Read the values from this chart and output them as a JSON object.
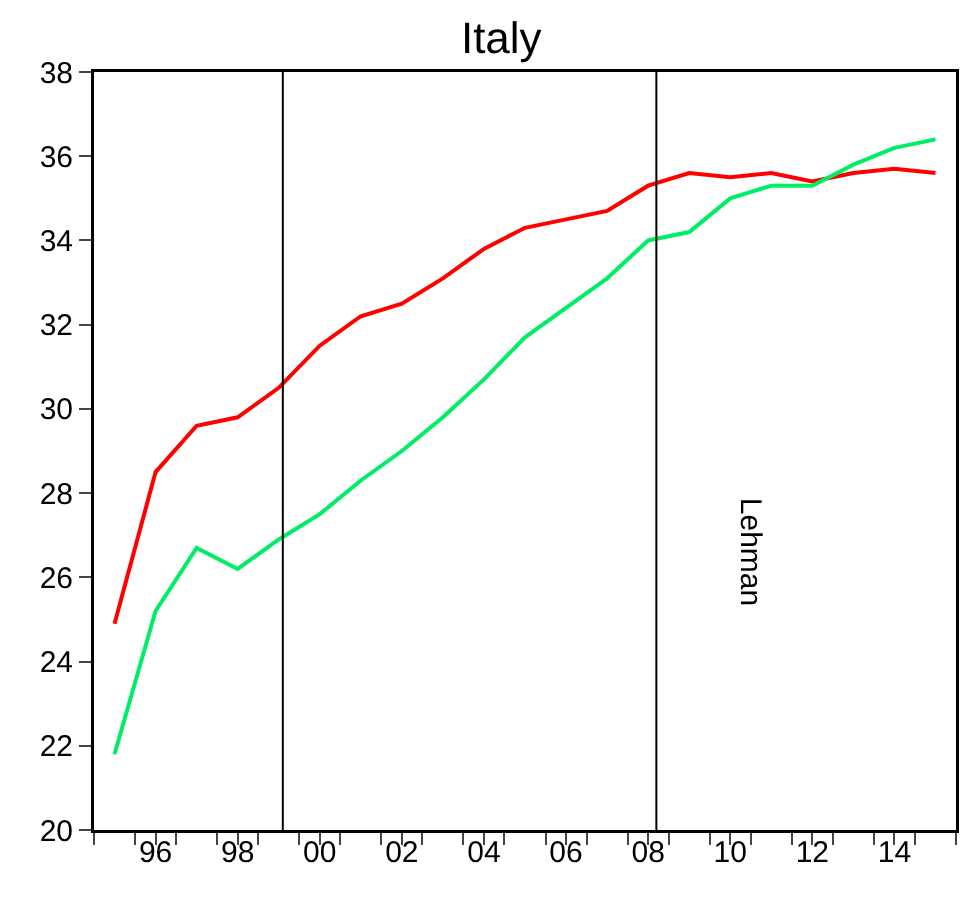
{
  "chart_data": {
    "type": "line",
    "title": "Italy",
    "x": [
      1995,
      1996,
      1997,
      1998,
      1999,
      2000,
      2001,
      2002,
      2003,
      2004,
      2005,
      2006,
      2007,
      2008,
      2009,
      2010,
      2011,
      2012,
      2013,
      2014,
      2015
    ],
    "series": [
      {
        "color": "#ff0000",
        "values": [
          24.9,
          28.5,
          29.6,
          29.8,
          30.5,
          31.5,
          32.2,
          32.5,
          33.1,
          33.8,
          34.3,
          34.5,
          34.7,
          35.3,
          35.6,
          35.5,
          35.6,
          35.4,
          35.6,
          35.7,
          35.6
        ]
      },
      {
        "color": "#00ee66",
        "values": [
          21.8,
          25.2,
          26.7,
          26.2,
          26.9,
          27.5,
          28.3,
          29.0,
          29.8,
          30.7,
          31.7,
          32.4,
          33.1,
          34.0,
          34.2,
          35.0,
          35.3,
          35.3,
          35.8,
          36.2,
          36.4
        ]
      }
    ],
    "xlim": [
      1994.5,
      2015.5
    ],
    "xticks": [
      {
        "value": 1994.5,
        "label": null
      },
      {
        "value": 1995.5,
        "label": null
      },
      {
        "value": 1996,
        "label": "96"
      },
      {
        "value": 1996.5,
        "label": null
      },
      {
        "value": 1997.5,
        "label": null
      },
      {
        "value": 1998,
        "label": "98"
      },
      {
        "value": 1998.5,
        "label": null
      },
      {
        "value": 1999.5,
        "label": null
      },
      {
        "value": 2000,
        "label": "00"
      },
      {
        "value": 2000.5,
        "label": null
      },
      {
        "value": 2001.5,
        "label": null
      },
      {
        "value": 2002,
        "label": "02"
      },
      {
        "value": 2002.5,
        "label": null
      },
      {
        "value": 2003.5,
        "label": null
      },
      {
        "value": 2004,
        "label": "04"
      },
      {
        "value": 2004.5,
        "label": null
      },
      {
        "value": 2005.5,
        "label": null
      },
      {
        "value": 2006,
        "label": "06"
      },
      {
        "value": 2006.5,
        "label": null
      },
      {
        "value": 2007.5,
        "label": null
      },
      {
        "value": 2008,
        "label": "08"
      },
      {
        "value": 2008.5,
        "label": null
      },
      {
        "value": 2009.5,
        "label": null
      },
      {
        "value": 2010,
        "label": "10"
      },
      {
        "value": 2010.5,
        "label": null
      },
      {
        "value": 2011.5,
        "label": null
      },
      {
        "value": 2012,
        "label": "12"
      },
      {
        "value": 2012.5,
        "label": null
      },
      {
        "value": 2013.5,
        "label": null
      },
      {
        "value": 2014,
        "label": "14"
      },
      {
        "value": 2014.5,
        "label": null
      },
      {
        "value": 2015.5,
        "label": null
      }
    ],
    "ylim": [
      20,
      38
    ],
    "yticks": [
      20,
      22,
      24,
      26,
      28,
      30,
      32,
      34,
      36,
      38
    ],
    "ref_lines": [
      {
        "axis": "x",
        "value": 1999.1,
        "color": "#000000"
      },
      {
        "axis": "x",
        "value": 2008.2,
        "color": "#000000",
        "label": "Lehman"
      }
    ],
    "grid": false,
    "line_style": "solid",
    "marker": "none"
  }
}
